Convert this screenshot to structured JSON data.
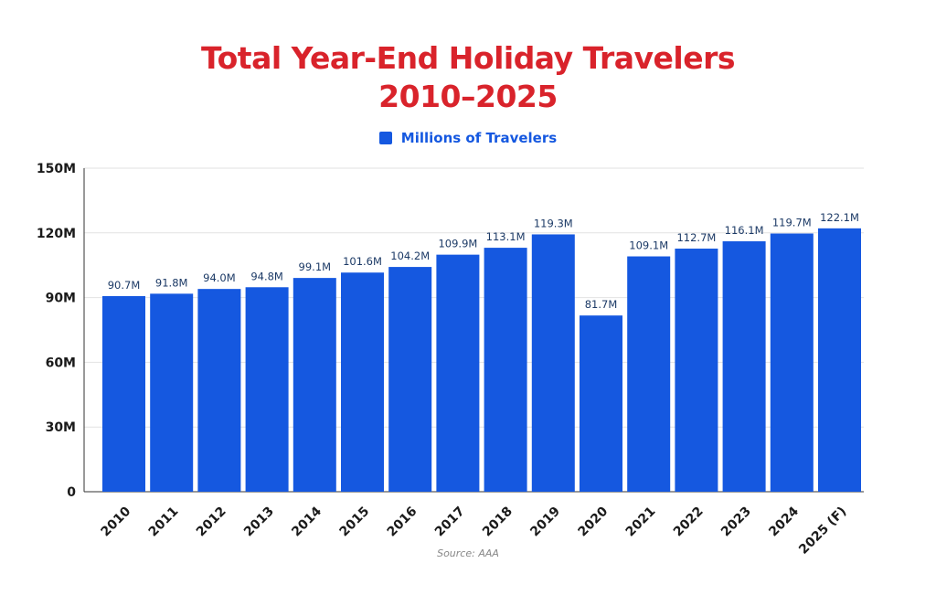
{
  "chart_data": {
    "type": "bar",
    "title_line1": "Total Year-End Holiday Travelers",
    "title_line2": "2010–2025",
    "categories": [
      "2010",
      "2011",
      "2012",
      "2013",
      "2014",
      "2015",
      "2016",
      "2017",
      "2018",
      "2019",
      "2020",
      "2021",
      "2022",
      "2023",
      "2024",
      "2025 (F)"
    ],
    "series": [
      {
        "name": "Millions of Travelers",
        "values": [
          90.7,
          91.8,
          94.0,
          94.8,
          99.1,
          101.6,
          104.2,
          109.9,
          113.1,
          119.3,
          81.7,
          109.1,
          112.7,
          116.1,
          119.7,
          122.1
        ],
        "labels": [
          "90.7M",
          "91.8M",
          "94.0M",
          "94.8M",
          "99.1M",
          "101.6M",
          "104.2M",
          "109.9M",
          "113.1M",
          "119.3M",
          "81.7M",
          "109.1M",
          "112.7M",
          "116.1M",
          "119.7M",
          "122.1M"
        ]
      }
    ],
    "ylim": [
      0,
      150
    ],
    "yticks": [
      0,
      30,
      60,
      90,
      120,
      150
    ],
    "ytick_labels": [
      "0",
      "30M",
      "60M",
      "90M",
      "120M",
      "150M"
    ],
    "grid": true,
    "legend_position": "top-center",
    "source": "Source: AAA",
    "colors": {
      "bar": "#1558e0",
      "title": "#d9232b",
      "value_label": "#1c3a66",
      "axis_text": "#1a1a1a"
    }
  }
}
